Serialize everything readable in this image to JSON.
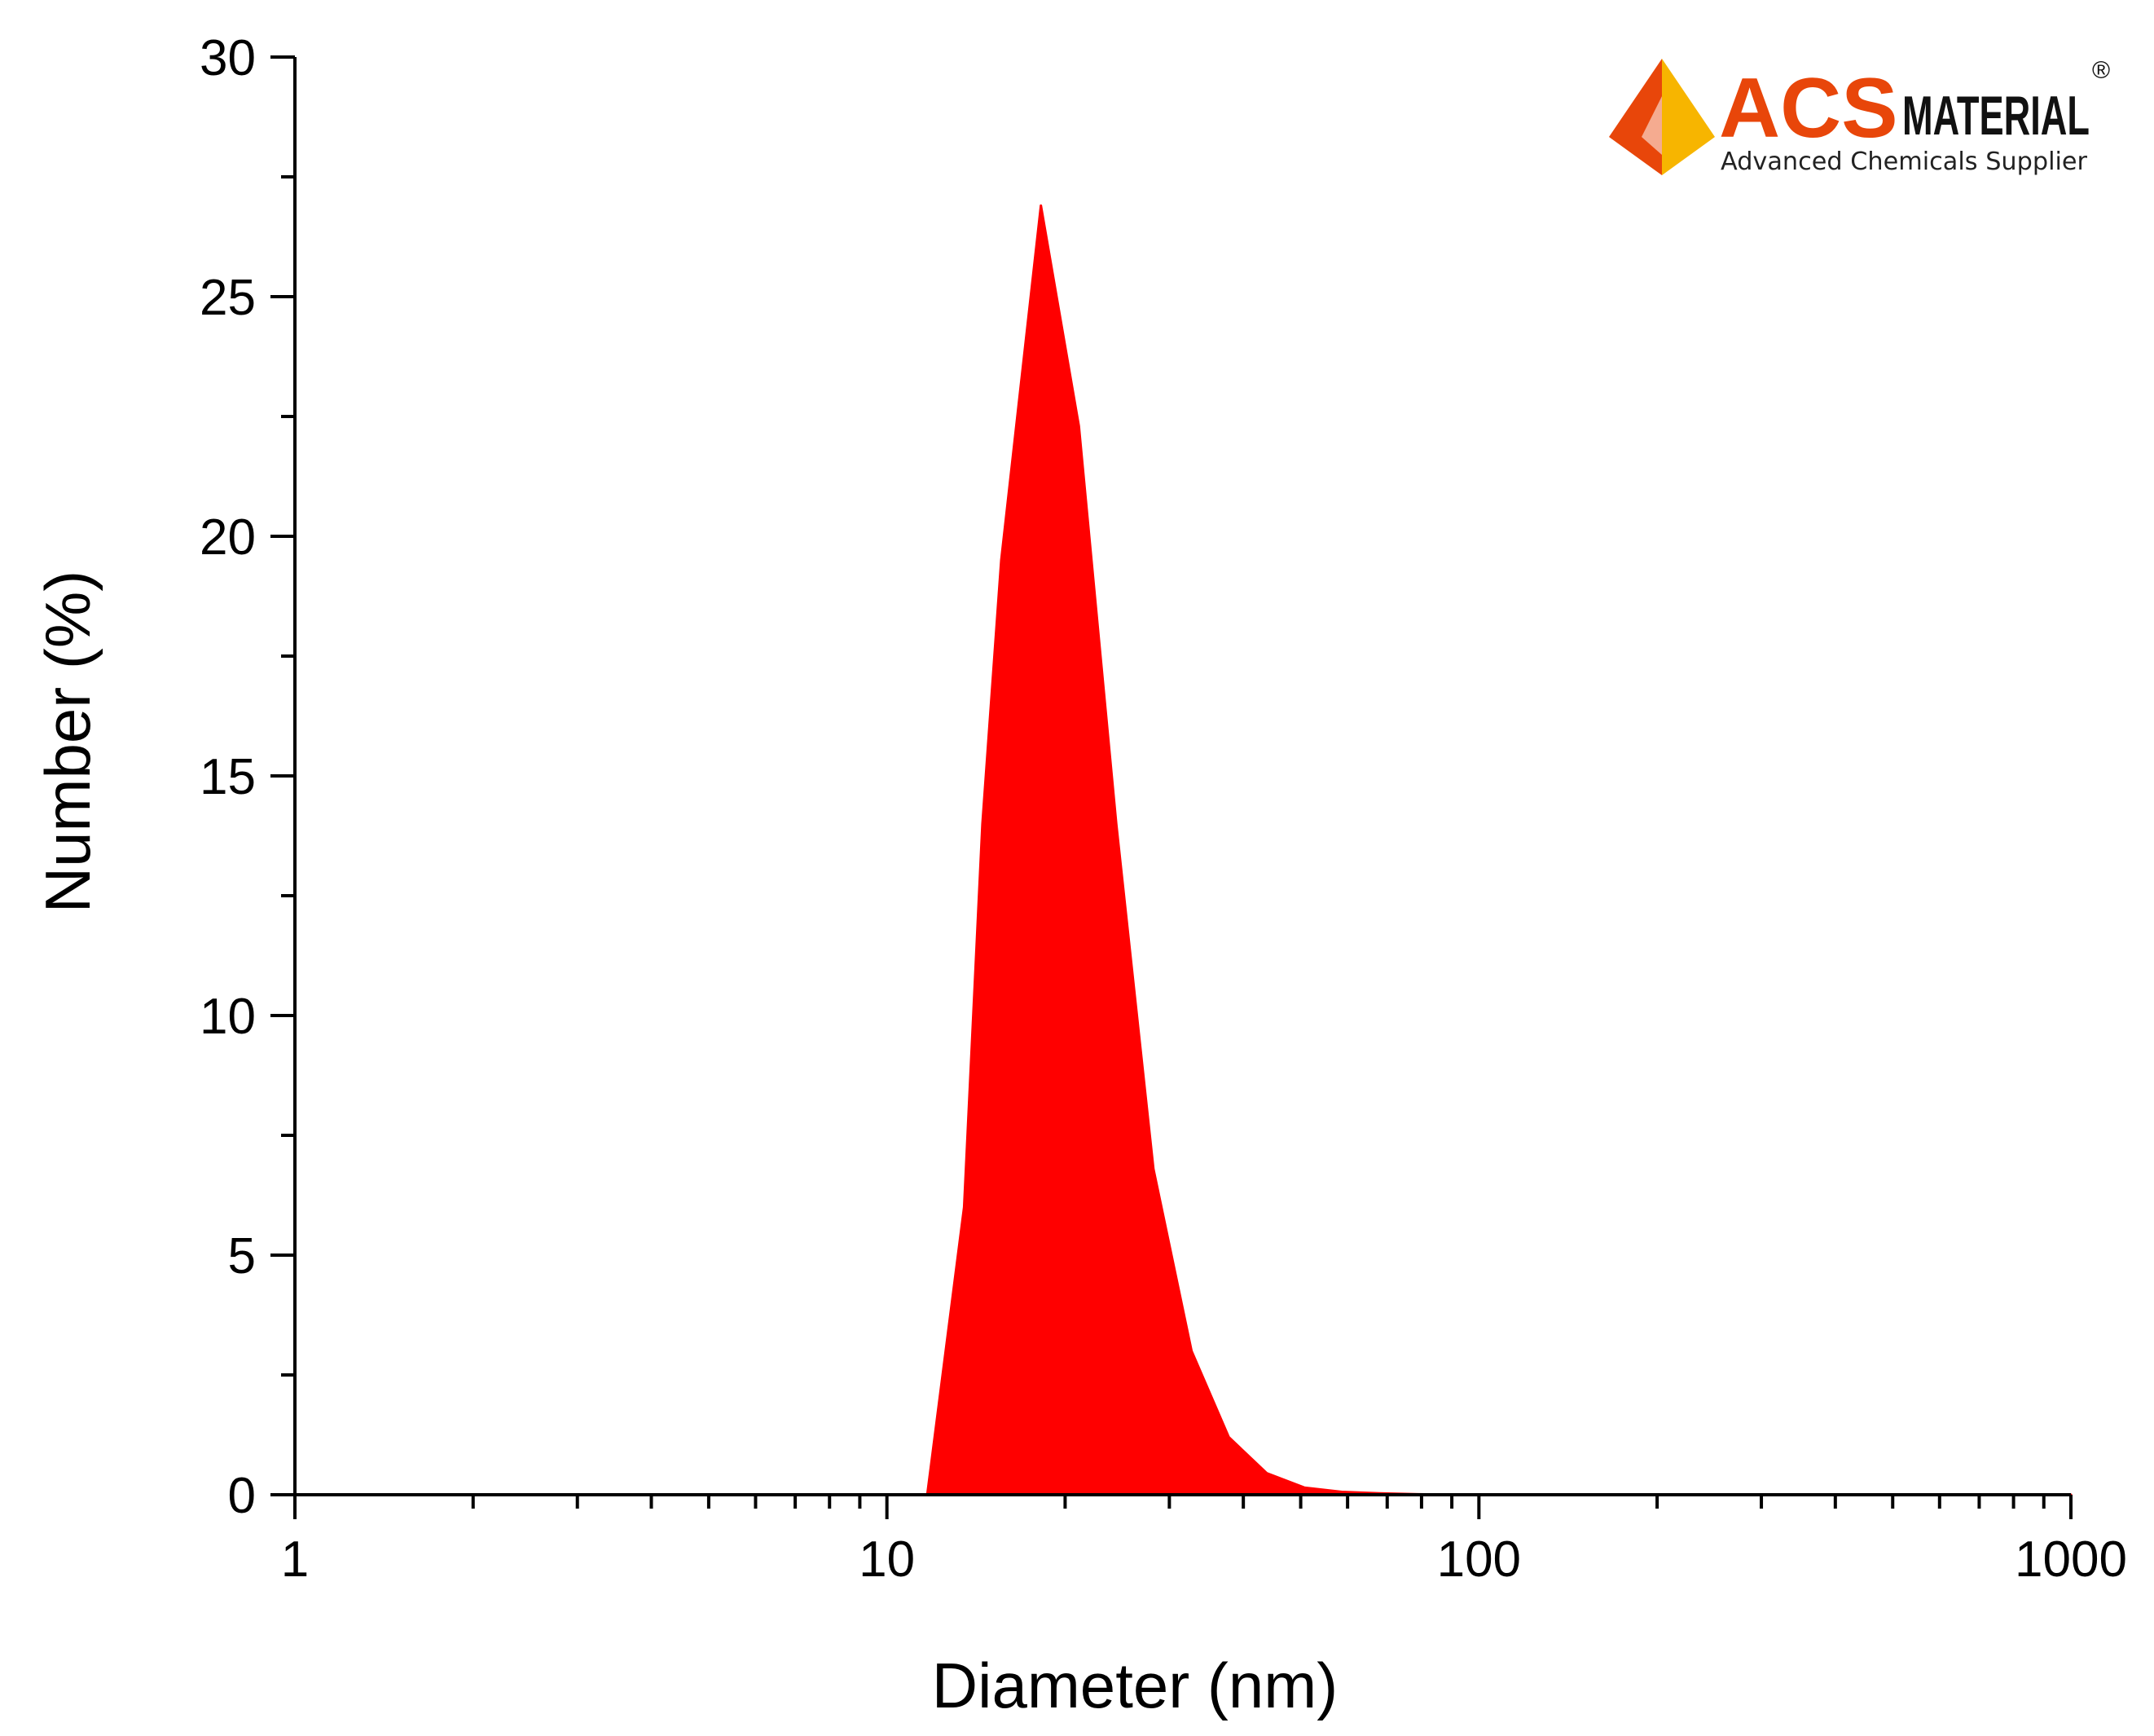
{
  "chart_data": {
    "type": "area",
    "xlabel": "Diameter (nm)",
    "ylabel": "Number (%)",
    "xscale": "log",
    "xlim": [
      1,
      1000
    ],
    "ylim": [
      0,
      30
    ],
    "x_ticks": [
      1,
      10,
      100,
      1000
    ],
    "x_tick_labels": [
      "1",
      "10",
      "100",
      "1000"
    ],
    "y_ticks": [
      0,
      5,
      10,
      15,
      20,
      25,
      30
    ],
    "y_tick_labels": [
      "0",
      "5",
      "10",
      "15",
      "20",
      "25",
      "30"
    ],
    "grid": false,
    "fill_color": "#ff0000",
    "series": [
      {
        "x": [
          1,
          10,
          11.7,
          13.5,
          14.5,
          15.6,
          18.2,
          21.1,
          24.4,
          28.2,
          32.7,
          37.8,
          43.8,
          50.7,
          58.7,
          68,
          78.8,
          91.3,
          105.7,
          122.4,
          200,
          500,
          1000
        ],
        "y": [
          0,
          0,
          0,
          6,
          14,
          19.5,
          26.9,
          22.3,
          14,
          6.8,
          3,
          1.2,
          0.45,
          0.15,
          0.06,
          0.03,
          0.01,
          0,
          0,
          0,
          0,
          0,
          0
        ]
      }
    ]
  },
  "logo": {
    "brand_primary": "ACS",
    "brand_secondary": "MATERIAL",
    "registered": "®",
    "tagline": "Advanced Chemicals Supplier",
    "primary_color": "#e8460a",
    "accent_color": "#f7b500",
    "icon": "acs-logo-icon"
  }
}
